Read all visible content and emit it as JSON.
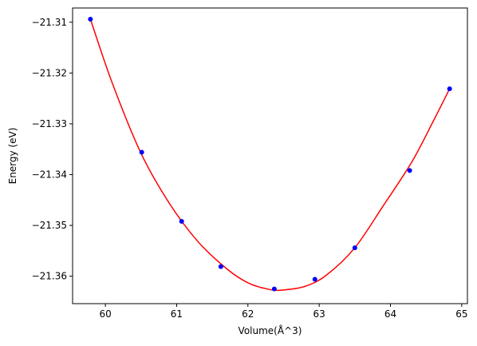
{
  "chart_data": {
    "type": "scatter",
    "title": "",
    "xlabel": "Volume(Å^3)",
    "ylabel": "Energy (eV)",
    "xlim": [
      59.54,
      65.08
    ],
    "ylim": [
      -21.3654,
      -21.3072
    ],
    "xticks": [
      60,
      61,
      62,
      63,
      64,
      65
    ],
    "yticks": [
      -21.31,
      -21.32,
      -21.33,
      -21.34,
      -21.35,
      -21.36
    ],
    "xtick_labels": [
      "60",
      "61",
      "62",
      "63",
      "64",
      "65"
    ],
    "ytick_labels": [
      "−21.31",
      "−21.32",
      "−21.33",
      "−21.34",
      "−21.35",
      "−21.36"
    ],
    "grid": false,
    "legend": "none",
    "series": [
      {
        "kind": "points",
        "color": "#0000ff",
        "x": [
          59.79,
          60.51,
          61.07,
          61.62,
          62.37,
          62.94,
          63.5,
          64.27,
          64.83
        ],
        "y": [
          -21.3094,
          -21.3356,
          -21.3492,
          -21.3581,
          -21.3625,
          -21.3606,
          -21.3544,
          -21.3392,
          -21.3231
        ]
      },
      {
        "kind": "fit-curve",
        "color": "#ff0000",
        "x": [
          59.79,
          60.1,
          60.5,
          60.9,
          61.3,
          61.7,
          62.0,
          62.3,
          62.5,
          62.8,
          63.1,
          63.5,
          63.9,
          64.3,
          64.6,
          64.83
        ],
        "y": [
          -21.3094,
          -21.3221,
          -21.3358,
          -21.3457,
          -21.3532,
          -21.3585,
          -21.3613,
          -21.3626,
          -21.3627,
          -21.362,
          -21.3598,
          -21.3544,
          -21.3461,
          -21.3375,
          -21.3295,
          -21.3231
        ]
      }
    ]
  }
}
